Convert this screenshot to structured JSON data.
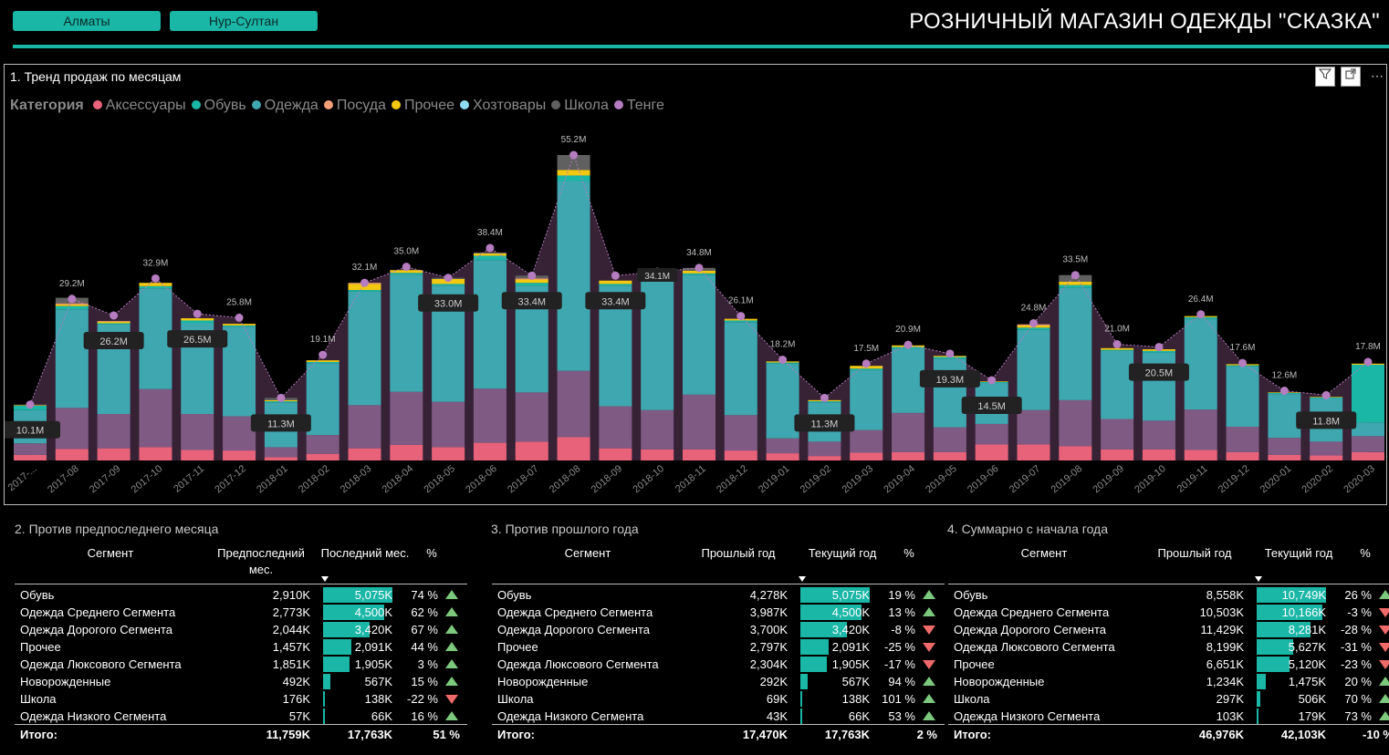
{
  "header": {
    "buttons": [
      "Алматы",
      "Нур-Султан"
    ],
    "title": "РОЗНИЧНЫЙ МАГАЗИН ОДЕЖДЫ \"СКАЗКА\""
  },
  "chart": {
    "title": "1. Тренд продаж по месяцам",
    "legend_title": "Категория",
    "icons": [
      "filter-icon",
      "focus-mode-icon",
      "more-options-icon"
    ]
  },
  "chart_data": {
    "type": "bar",
    "stacked": true,
    "categories": [
      "2017-...",
      "2017-08",
      "2017-09",
      "2017-10",
      "2017-11",
      "2017-12",
      "2018-01",
      "2018-02",
      "2018-03",
      "2018-04",
      "2018-05",
      "2018-06",
      "2018-07",
      "2018-08",
      "2018-09",
      "2018-10",
      "2018-11",
      "2018-12",
      "2019-01",
      "2019-02",
      "2019-03",
      "2019-04",
      "2019-05",
      "2019-06",
      "2019-07",
      "2019-08",
      "2019-09",
      "2019-10",
      "2019-11",
      "2019-12",
      "2020-01",
      "2020-02",
      "2020-03"
    ],
    "totals_label": [
      "10.1M",
      "29.2M",
      "26.2M",
      "32.9M",
      "26.5M",
      "25.8M",
      "11.3M",
      "19.1M",
      "32.1M",
      "35.0M",
      "33.0M",
      "38.4M",
      "33.4M",
      "55.2M",
      "33.4M",
      "",
      "34.8M",
      "26.1M",
      "18.2M",
      "11.3M",
      "17.5M",
      "20.9M",
      "19.3M",
      "14.5M",
      "24.8M",
      "33.5M",
      "21.0M",
      "20.5M",
      "26.4M",
      "17.6M",
      "12.6M",
      "11.8M",
      "17.8M"
    ],
    "label_style": [
      "box",
      "plain",
      "box",
      "plain",
      "box",
      "plain",
      "box",
      "plain",
      "plain",
      "plain",
      "box",
      "plain",
      "box",
      "plain",
      "box",
      "none",
      "plain",
      "plain",
      "plain",
      "box",
      "plain",
      "plain",
      "box",
      "box",
      "plain",
      "plain",
      "plain",
      "box",
      "plain",
      "plain",
      "plain",
      "box",
      "plain"
    ],
    "extra_label": {
      "index": 15,
      "text": "34.1M"
    },
    "totals": [
      10.1,
      29.2,
      26.2,
      32.9,
      26.5,
      25.8,
      11.3,
      19.1,
      32.1,
      35.0,
      33.0,
      38.4,
      33.4,
      55.2,
      33.4,
      34.1,
      34.8,
      26.1,
      18.2,
      11.3,
      17.5,
      20.9,
      19.3,
      14.5,
      24.8,
      33.5,
      21.0,
      20.5,
      26.4,
      17.6,
      12.6,
      11.8,
      17.8
    ],
    "series": [
      {
        "name": "Аксессуары",
        "color": "#e8637a",
        "values": [
          1.0,
          2.1,
          2.2,
          2.4,
          1.9,
          1.8,
          0.6,
          1.2,
          2.2,
          2.8,
          2.4,
          3.2,
          3.4,
          4.2,
          2.2,
          2.0,
          2.0,
          1.8,
          1.3,
          0.8,
          1.4,
          1.5,
          1.5,
          2.9,
          2.9,
          2.6,
          2.0,
          2.0,
          1.9,
          1.5,
          1.0,
          0.9,
          1.5
        ]
      },
      {
        "name": "Тенге",
        "color": "#7f5a83",
        "values": [
          2.1,
          7.4,
          6.2,
          10.5,
          6.5,
          6.2,
          1.8,
          3.4,
          7.8,
          9.6,
          8.2,
          9.8,
          8.9,
          12.0,
          7.6,
          7.1,
          9.9,
          6.4,
          2.7,
          2.6,
          4.1,
          7.1,
          4.5,
          3.7,
          6.2,
          8.3,
          5.5,
          5.2,
          7.3,
          4.6,
          3.1,
          2.5,
          2.9
        ]
      },
      {
        "name": "Одежда",
        "color": "#3fa7b0",
        "values": [
          6.0,
          17.8,
          16.2,
          18.2,
          16.4,
          16.2,
          8.1,
          13.0,
          20.5,
          21.2,
          21.0,
          23.2,
          19.3,
          34.3,
          21.8,
          23.4,
          21.6,
          16.8,
          13.5,
          7.1,
          10.8,
          11.6,
          12.4,
          7.4,
          14.5,
          20.3,
          12.3,
          12.3,
          16.4,
          10.9,
          7.9,
          7.8,
          2.5
        ]
      },
      {
        "name": "Обувь",
        "color": "#1ab6a6",
        "values": [
          0.8,
          0.6,
          0.2,
          0.4,
          0.5,
          0.2,
          0.2,
          0.2,
          0.3,
          0.3,
          0.3,
          0.8,
          0.5,
          1.0,
          0.3,
          0.3,
          0.3,
          0.3,
          0.2,
          0.2,
          0.3,
          0.3,
          0.3,
          0.2,
          0.4,
          0.5,
          0.2,
          0.3,
          0.3,
          0.2,
          0.2,
          0.2,
          10.4
        ]
      },
      {
        "name": "Прочее",
        "color": "#f2c811",
        "values": [
          0.1,
          0.3,
          0.3,
          0.6,
          0.4,
          0.3,
          0.2,
          0.3,
          1.1,
          0.5,
          0.9,
          0.4,
          0.6,
          1.0,
          0.6,
          0.5,
          0.5,
          0.3,
          0.2,
          0.2,
          0.5,
          0.3,
          0.2,
          0.1,
          0.4,
          0.6,
          0.3,
          0.3,
          0.2,
          0.2,
          0.1,
          0.1,
          0.2
        ]
      },
      {
        "name": "Посуда",
        "color": "#f4a07a",
        "values": [
          0.0,
          0.2,
          0.1,
          0.0,
          0.0,
          0.0,
          0.0,
          0.0,
          0.2,
          0.0,
          0.0,
          0.0,
          0.2,
          0.0,
          0.0,
          0.0,
          0.0,
          0.0,
          0.0,
          0.0,
          0.0,
          0.0,
          0.0,
          0.0,
          0.2,
          0.0,
          0.0,
          0.0,
          0.0,
          0.0,
          0.0,
          0.0,
          0.0
        ]
      },
      {
        "name": "Хозтовары",
        "color": "#8fdbf2",
        "values": [
          0,
          0,
          0,
          0,
          0,
          0,
          0,
          0,
          0,
          0,
          0,
          0,
          0,
          0,
          0,
          0,
          0,
          0,
          0,
          0,
          0,
          0,
          0,
          0,
          0,
          0,
          0,
          0,
          0,
          0,
          0,
          0,
          0
        ]
      },
      {
        "name": "Школа",
        "color": "#606060",
        "values": [
          0.1,
          1.0,
          0.0,
          0.0,
          0.0,
          0.0,
          0.4,
          0.0,
          0.0,
          0.0,
          0.2,
          0.2,
          0.5,
          2.7,
          0.0,
          0.8,
          0.5,
          0.0,
          0.0,
          0.0,
          0.0,
          0.0,
          0.0,
          0.0,
          0.0,
          1.2,
          0.0,
          0.0,
          0.0,
          0.0,
          0.0,
          0.0,
          0.0
        ]
      }
    ],
    "legend_order": [
      "Аксессуары",
      "Обувь",
      "Одежда",
      "Посуда",
      "Прочее",
      "Хозтовары",
      "Школа",
      "Тенге"
    ],
    "ylim": [
      0,
      58
    ],
    "line_series": {
      "name": "Тенге",
      "color": "#b57cc0"
    }
  },
  "tables": [
    {
      "title": "2. Против предпоследнего месяца",
      "headers": [
        "Сегмент",
        "Предпоследний мес.",
        "Последний мес.",
        "%"
      ],
      "rows": [
        {
          "seg": "Обувь",
          "a": "2,910K",
          "b": "5,075K",
          "bv": 5075,
          "pct": "74 %",
          "dir": "up"
        },
        {
          "seg": "Одежда Среднего Сегмента",
          "a": "2,773K",
          "b": "4,500K",
          "bv": 4500,
          "pct": "62 %",
          "dir": "up"
        },
        {
          "seg": "Одежда Дорогого Сегмента",
          "a": "2,044K",
          "b": "3,420K",
          "bv": 3420,
          "pct": "67 %",
          "dir": "up"
        },
        {
          "seg": "Прочее",
          "a": "1,457K",
          "b": "2,091K",
          "bv": 2091,
          "pct": "44 %",
          "dir": "up"
        },
        {
          "seg": "Одежда Люксового Сегмента",
          "a": "1,851K",
          "b": "1,905K",
          "bv": 1905,
          "pct": "3 %",
          "dir": "up"
        },
        {
          "seg": "Новорожденные",
          "a": "492K",
          "b": "567K",
          "bv": 567,
          "pct": "15 %",
          "dir": "up"
        },
        {
          "seg": "Школа",
          "a": "176K",
          "b": "138K",
          "bv": 138,
          "pct": "-22 %",
          "dir": "down"
        },
        {
          "seg": "Одежда Низкого Сегмента",
          "a": "57K",
          "b": "66K",
          "bv": 66,
          "pct": "16 %",
          "dir": "up"
        }
      ],
      "bar_max": 5075,
      "total": {
        "label": "Итого:",
        "a": "11,759K",
        "b": "17,763K",
        "pct": "51 %"
      }
    },
    {
      "title": "3. Против прошлого года",
      "headers": [
        "Сегмент",
        "Прошлый год",
        "Текущий год",
        "%"
      ],
      "rows": [
        {
          "seg": "Обувь",
          "a": "4,278K",
          "b": "5,075K",
          "bv": 5075,
          "pct": "19 %",
          "dir": "up"
        },
        {
          "seg": "Одежда Среднего Сегмента",
          "a": "3,987K",
          "b": "4,500K",
          "bv": 4500,
          "pct": "13 %",
          "dir": "up"
        },
        {
          "seg": "Одежда Дорогого Сегмента",
          "a": "3,700K",
          "b": "3,420K",
          "bv": 3420,
          "pct": "-8 %",
          "dir": "down"
        },
        {
          "seg": "Прочее",
          "a": "2,797K",
          "b": "2,091K",
          "bv": 2091,
          "pct": "-25 %",
          "dir": "down"
        },
        {
          "seg": "Одежда Люксового Сегмента",
          "a": "2,304K",
          "b": "1,905K",
          "bv": 1905,
          "pct": "-17 %",
          "dir": "down"
        },
        {
          "seg": "Новорожденные",
          "a": "292K",
          "b": "567K",
          "bv": 567,
          "pct": "94 %",
          "dir": "up"
        },
        {
          "seg": "Школа",
          "a": "69K",
          "b": "138K",
          "bv": 138,
          "pct": "101 %",
          "dir": "up"
        },
        {
          "seg": "Одежда Низкого Сегмента",
          "a": "43K",
          "b": "66K",
          "bv": 66,
          "pct": "53 %",
          "dir": "up"
        }
      ],
      "bar_max": 5075,
      "total": {
        "label": "Итого:",
        "a": "17,470K",
        "b": "17,763K",
        "pct": "2 %"
      }
    },
    {
      "title": "4. Суммарно с начала года",
      "headers": [
        "Сегмент",
        "Прошлый год",
        "Текущий год",
        "%"
      ],
      "rows": [
        {
          "seg": "Обувь",
          "a": "8,558K",
          "b": "10,749K",
          "bv": 10749,
          "pct": "26 %",
          "dir": "up"
        },
        {
          "seg": "Одежда Среднего Сегмента",
          "a": "10,503K",
          "b": "10,166K",
          "bv": 10166,
          "pct": "-3 %",
          "dir": "down"
        },
        {
          "seg": "Одежда Дорогого Сегмента",
          "a": "11,429K",
          "b": "8,281K",
          "bv": 8281,
          "pct": "-28 %",
          "dir": "down"
        },
        {
          "seg": "Одежда Люксового Сегмента",
          "a": "8,199K",
          "b": "5,627K",
          "bv": 5627,
          "pct": "-31 %",
          "dir": "down"
        },
        {
          "seg": "Прочее",
          "a": "6,651K",
          "b": "5,120K",
          "bv": 5120,
          "pct": "-23 %",
          "dir": "down"
        },
        {
          "seg": "Новорожденные",
          "a": "1,234K",
          "b": "1,475K",
          "bv": 1475,
          "pct": "20 %",
          "dir": "up"
        },
        {
          "seg": "Школа",
          "a": "297K",
          "b": "506K",
          "bv": 506,
          "pct": "70 %",
          "dir": "up"
        },
        {
          "seg": "Одежда Низкого Сегмента",
          "a": "103K",
          "b": "179K",
          "bv": 179,
          "pct": "73 %",
          "dir": "up"
        }
      ],
      "bar_max": 10749,
      "total": {
        "label": "Итого:",
        "a": "46,976K",
        "b": "42,103K",
        "pct": "-10 %"
      }
    }
  ]
}
